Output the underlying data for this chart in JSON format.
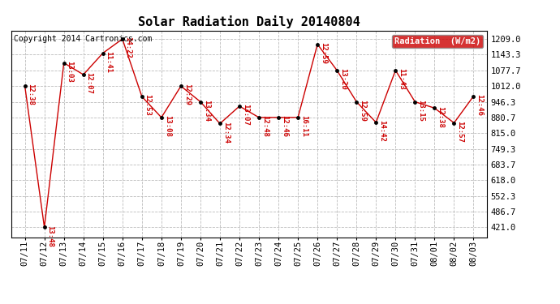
{
  "title": "Solar Radiation Daily 20140804",
  "copyright": "Copyright 2014 Cartronics.com",
  "legend_label": "Radiation  (W/m2)",
  "dates": [
    "07/11",
    "07/12",
    "07/13",
    "07/14",
    "07/15",
    "07/16",
    "07/17",
    "07/18",
    "07/19",
    "07/20",
    "07/21",
    "07/22",
    "07/23",
    "07/24",
    "07/25",
    "07/26",
    "07/27",
    "07/28",
    "07/29",
    "07/30",
    "07/31",
    "08/01",
    "08/02",
    "08/03"
  ],
  "values": [
    1012.0,
    421.0,
    1109.0,
    1060.0,
    1150.0,
    1209.0,
    968.0,
    880.7,
    1012.0,
    946.3,
    855.0,
    928.0,
    880.7,
    880.7,
    880.7,
    1187.0,
    1077.7,
    946.3,
    860.0,
    1077.7,
    946.3,
    920.0,
    858.0,
    970.0
  ],
  "labels": [
    "12:38",
    "13:48",
    "13:03",
    "12:07",
    "11:41",
    "14:22",
    "12:53",
    "13:08",
    "12:29",
    "13:34",
    "12:34",
    "13:07",
    "12:48",
    "12:46",
    "16:11",
    "12:59",
    "13:20",
    "12:59",
    "14:42",
    "11:43",
    "13:15",
    "12:38",
    "12:57",
    "12:46"
  ],
  "ytick_labels": [
    "421.0",
    "486.7",
    "552.3",
    "618.0",
    "683.7",
    "749.3",
    "815.0",
    "880.7",
    "946.3",
    "1012.0",
    "1077.7",
    "1143.3",
    "1209.0"
  ],
  "ytick_values": [
    421.0,
    486.7,
    552.3,
    618.0,
    683.7,
    749.3,
    815.0,
    880.7,
    946.3,
    1012.0,
    1077.7,
    1143.3,
    1209.0
  ],
  "ymin": 380.0,
  "ymax": 1245.0,
  "line_color": "#cc0000",
  "marker_color": "#000000",
  "label_color": "#cc0000",
  "legend_bg": "#cc0000",
  "legend_fg": "#ffffff",
  "bg_color": "#ffffff",
  "grid_color": "#bbbbbb",
  "border_color": "#000000",
  "title_fontsize": 11,
  "label_fontsize": 6.5,
  "tick_fontsize": 7.5,
  "copyright_fontsize": 7
}
